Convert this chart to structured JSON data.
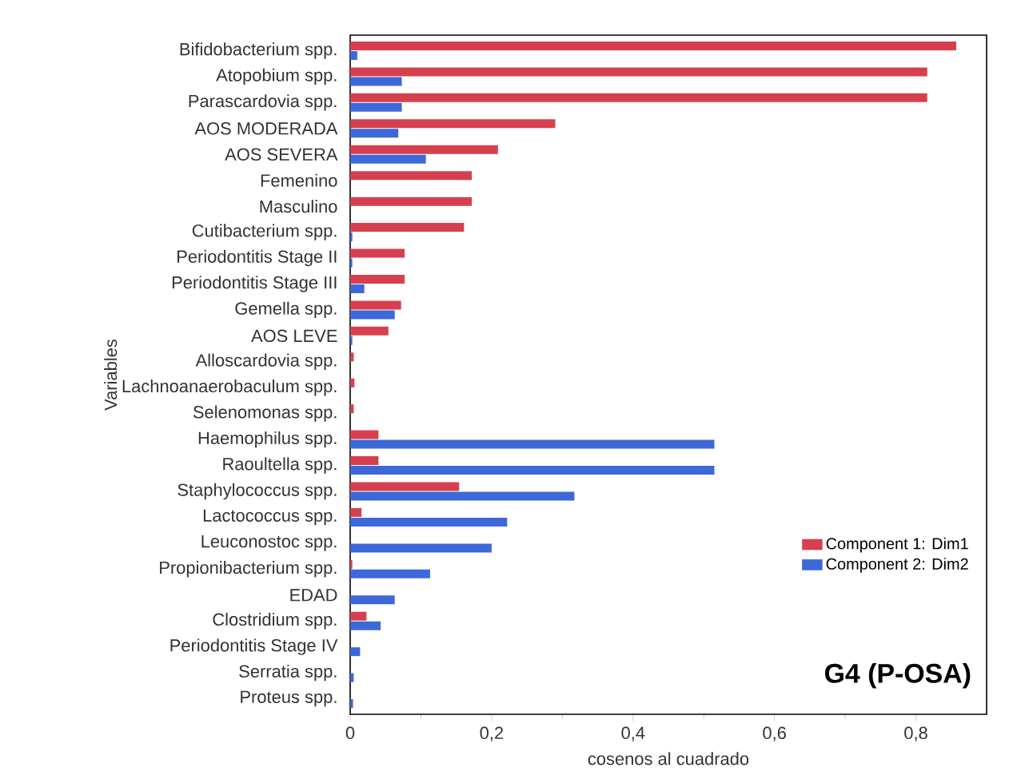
{
  "chart_data": {
    "type": "bar",
    "orientation": "horizontal",
    "xlabel": "cosenos al cuadrado",
    "ylabel": "Variables",
    "annotations": [
      "G4 (P-OSA)"
    ],
    "categories": [
      "Bifidobacterium spp.",
      "Atopobium spp.",
      "Parascardovia spp.",
      "AOS MODERADA",
      "AOS SEVERA",
      "Femenino",
      "Masculino",
      "Cutibacterium spp.",
      "Periodontitis Stage II",
      "Periodontitis Stage III",
      "Gemella spp.",
      "AOS LEVE",
      "Alloscardovia spp.",
      "Lachnoanaerobaculum spp.",
      "Selenomonas spp.",
      "Haemophilus spp.",
      "Raoultella spp.",
      "Staphylococcus spp.",
      "Lactococcus spp.",
      "Leuconostoc spp.",
      "Propionibacterium spp.",
      "EDAD",
      "Clostridium spp.",
      "Periodontitis Stage IV",
      "Serratia spp.",
      "Proteus spp."
    ],
    "series": [
      {
        "name": "Component 1: Dim1",
        "color": "#d6404e",
        "values": [
          0.857,
          0.816,
          0.816,
          0.29,
          0.209,
          0.172,
          0.172,
          0.161,
          0.077,
          0.077,
          0.072,
          0.054,
          0.005,
          0.006,
          0.005,
          0.04,
          0.04,
          0.154,
          0.016,
          0,
          0.003,
          0,
          0.023,
          0,
          0,
          0
        ]
      },
      {
        "name": "Component 2: Dim2",
        "color": "#3d68d8",
        "values": [
          0.01,
          0.073,
          0.073,
          0.068,
          0.107,
          0,
          0,
          0.003,
          0.003,
          0.02,
          0.063,
          0.003,
          0,
          0,
          0,
          0.515,
          0.515,
          0.317,
          0.222,
          0.2,
          0.113,
          0.063,
          0.043,
          0.014,
          0.005,
          0.004
        ]
      }
    ],
    "xlim": [
      0,
      0.9
    ],
    "xticks": [
      0,
      {
        "value": 0.2,
        "label": "0,2"
      },
      {
        "value": 0.4,
        "label": "0,4"
      },
      {
        "value": 0.6,
        "label": "0,6"
      },
      {
        "value": 0.8,
        "label": "0,8"
      }
    ],
    "legend": "bottom right",
    "grid": false
  }
}
